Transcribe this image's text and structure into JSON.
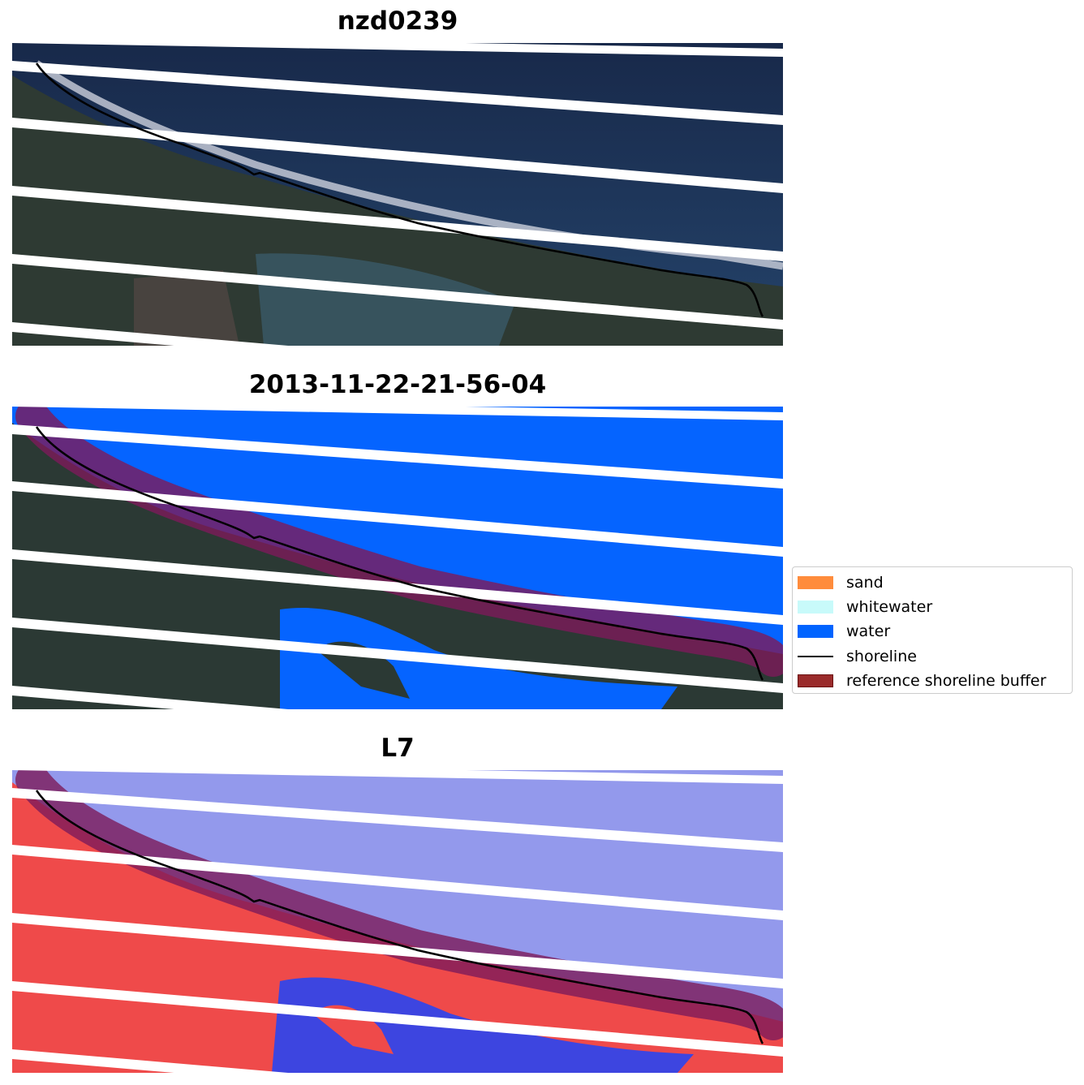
{
  "panels": [
    {
      "title": "nzd0239",
      "view": "rgb"
    },
    {
      "title": "2013-11-22-21-56-04",
      "view": "classified"
    },
    {
      "title": "L7",
      "view": "mndwi"
    }
  ],
  "legend": {
    "items": [
      {
        "label": "sand",
        "color": "#ff8c3c",
        "kind": "patch"
      },
      {
        "label": "whitewater",
        "color": "#c8fafa",
        "kind": "patch"
      },
      {
        "label": "water",
        "color": "#0064ff",
        "kind": "patch"
      },
      {
        "label": "shoreline",
        "color": "#000000",
        "kind": "line"
      },
      {
        "label": "reference shoreline buffer",
        "color": "#9a2b2b",
        "kind": "patch"
      }
    ]
  },
  "colors": {
    "ocean_rgb": "#1f3556",
    "land_rgb": "#2f3a36",
    "water_class": "#0564ff",
    "buffer": "#7d1a5a",
    "land_index": "#ee4a4a",
    "water_index": "#8f95ee",
    "scanline_gap": "#ffffff"
  }
}
